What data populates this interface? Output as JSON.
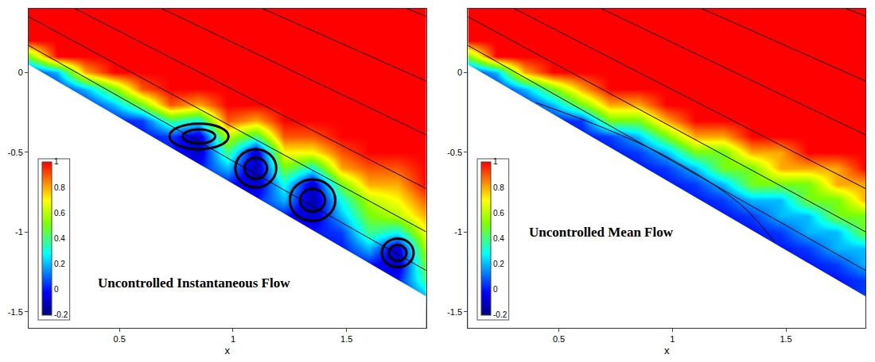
{
  "chart_data": [
    {
      "type": "heatmap",
      "annotation": "Uncontrolled Instantaneous Flow",
      "xlabel": "x",
      "xlim": [
        0.1,
        1.85
      ],
      "xticks": [
        0.5,
        1,
        1.5
      ],
      "ylim": [
        -1.6,
        0.4
      ],
      "yticks": [
        -1.5,
        -1,
        -0.5,
        0
      ],
      "zlim": [
        -0.2,
        1
      ],
      "zticks": [
        -0.2,
        0,
        0.2,
        0.4,
        0.6,
        0.8,
        1
      ],
      "grid": false,
      "x": [
        0.1,
        0.225,
        0.35,
        0.475,
        0.6,
        0.725,
        0.85,
        0.975,
        1.1,
        1.225,
        1.35,
        1.475,
        1.6,
        1.725,
        1.85
      ],
      "y": [
        -1.6,
        -1.5,
        -1.4,
        -1.3,
        -1.2,
        -1.1,
        -1.0,
        -0.9,
        -0.8,
        -0.7,
        -0.6,
        -0.5,
        -0.4,
        -0.3,
        -0.2,
        -0.1,
        0,
        0.1,
        0.2,
        0.3,
        0.4
      ],
      "z": [
        [
          0,
          0,
          0,
          0,
          0,
          0,
          0,
          0,
          0,
          0,
          0,
          0,
          0,
          0,
          0
        ],
        [
          0,
          0,
          0,
          0,
          0,
          0,
          0,
          0,
          0,
          0,
          0,
          0,
          0,
          0,
          0
        ],
        [
          0,
          0,
          0,
          0,
          0,
          0,
          0,
          0,
          0,
          0,
          0,
          0,
          0,
          0,
          0.2
        ],
        [
          0,
          0,
          0,
          0,
          0,
          0,
          0,
          0,
          0,
          0,
          0,
          0,
          0,
          0,
          0.4
        ],
        [
          0,
          0,
          0,
          0,
          0,
          0,
          0,
          0,
          0,
          0,
          0,
          0,
          0,
          -0.1,
          0.5
        ],
        [
          0,
          0,
          0,
          0,
          0,
          0,
          0,
          0,
          0,
          0,
          0,
          0,
          0.2,
          -0.1,
          0.6
        ],
        [
          0,
          0,
          0,
          0,
          0,
          0,
          0,
          0,
          0,
          0,
          0,
          0.05,
          0.4,
          0.3,
          0.7
        ],
        [
          0,
          0,
          0,
          0,
          0,
          0,
          0,
          0,
          0,
          0,
          -0.1,
          0.2,
          0.5,
          0.6,
          0.8
        ],
        [
          0,
          0,
          0,
          0,
          0,
          0,
          0,
          0,
          0,
          0.2,
          -0.15,
          0.3,
          0.6,
          0.7,
          0.9
        ],
        [
          0,
          0,
          0,
          0,
          0,
          0,
          0,
          0,
          -0.1,
          0.3,
          -0.1,
          0.5,
          0.8,
          0.8,
          1
        ],
        [
          0,
          0,
          0,
          0,
          0,
          0,
          0,
          0.2,
          -0.15,
          0.5,
          0.3,
          0.8,
          0.9,
          0.9,
          1
        ],
        [
          0,
          0,
          0,
          0,
          0,
          0,
          -0.1,
          0.4,
          -0.1,
          0.7,
          0.7,
          0.9,
          1,
          1,
          1
        ],
        [
          0,
          0,
          0,
          0,
          0,
          0.05,
          -0.1,
          0.6,
          0.4,
          0.9,
          0.9,
          1,
          1,
          1,
          1
        ],
        [
          0,
          0,
          0,
          0,
          0.05,
          0.4,
          0.3,
          0.9,
          0.8,
          1,
          1,
          1,
          1,
          1,
          1
        ],
        [
          0,
          0,
          0,
          0.2,
          0.5,
          0.9,
          0.8,
          1,
          1,
          1,
          1,
          1,
          1,
          1,
          1
        ],
        [
          0,
          0,
          0.2,
          0.5,
          0.9,
          1,
          1,
          1,
          1,
          1,
          1,
          1,
          1,
          1,
          1
        ],
        [
          0,
          0.2,
          0.8,
          1,
          1,
          1,
          1,
          1,
          1,
          1,
          1,
          1,
          1,
          1,
          1
        ],
        [
          0.5,
          1,
          1,
          1,
          1,
          1,
          1,
          1,
          1,
          1,
          1,
          1,
          1,
          1,
          1
        ],
        [
          1,
          1,
          1,
          1,
          1,
          1,
          1,
          1,
          1,
          1,
          1,
          1,
          1,
          1,
          1
        ],
        [
          1,
          1,
          1,
          1,
          1,
          1,
          1,
          1,
          1,
          1,
          1,
          1,
          1,
          1,
          1
        ],
        [
          1,
          1,
          1,
          1,
          1,
          1,
          1,
          1,
          1,
          1,
          1,
          1,
          1,
          1,
          1
        ]
      ],
      "wall": {
        "x": [
          0.1,
          1.85
        ],
        "y": [
          0.05,
          -1.4025
        ]
      },
      "streamlines": [
        {
          "x": [
            0.1,
            0.5,
            1.0,
            1.5,
            1.85
          ],
          "y": [
            0.17,
            -0.152,
            -0.555,
            -0.958,
            -1.24
          ]
        },
        {
          "x": [
            0.1,
            0.5,
            1.0,
            1.5,
            1.85
          ],
          "y": [
            0.35,
            0.042,
            -0.343,
            -0.728,
            -0.998
          ]
        },
        {
          "x": [
            0.1,
            0.5,
            1.0,
            1.5,
            1.85
          ],
          "y": [
            0.55,
            0.258,
            -0.107,
            -0.472,
            -0.727
          ]
        },
        {
          "x": [
            0.1,
            0.5,
            1.0,
            1.5,
            1.85
          ],
          "y": [
            0.8,
            0.528,
            0.188,
            -0.152,
            -0.39
          ]
        },
        {
          "x": [
            0.1,
            0.5,
            1.0,
            1.5,
            1.85
          ],
          "y": [
            1.05,
            0.798,
            0.483,
            0.168,
            -0.053
          ]
        },
        {
          "x": [
            0.1,
            0.5,
            1.0,
            1.5,
            1.85
          ],
          "y": [
            1.35,
            1.122,
            0.837,
            0.552,
            0.353
          ]
        }
      ],
      "vortices": [
        {
          "x": 0.85,
          "y": -0.4,
          "x_radius": 0.13,
          "y_radius": 0.08
        },
        {
          "x": 1.1,
          "y": -0.6,
          "x_radius": 0.09,
          "y_radius": 0.12
        },
        {
          "x": 1.35,
          "y": -0.8,
          "x_radius": 0.1,
          "y_radius": 0.13
        },
        {
          "x": 1.725,
          "y": -1.13,
          "x_radius": 0.07,
          "y_radius": 0.09
        }
      ]
    },
    {
      "type": "heatmap",
      "annotation": "Uncontrolled Mean Flow",
      "xlabel": "x",
      "xlim": [
        0.1,
        1.85
      ],
      "xticks": [
        0.5,
        1,
        1.5
      ],
      "ylim": [
        -1.6,
        0.4
      ],
      "yticks": [
        -1.5,
        -1,
        -0.5,
        0
      ],
      "zlim": [
        -0.2,
        1
      ],
      "zticks": [
        -0.2,
        0,
        0.2,
        0.4,
        0.6,
        0.8,
        1
      ],
      "grid": false,
      "x": [
        0.1,
        0.225,
        0.35,
        0.475,
        0.6,
        0.725,
        0.85,
        0.975,
        1.1,
        1.225,
        1.35,
        1.475,
        1.6,
        1.725,
        1.85
      ],
      "y": [
        -1.6,
        -1.5,
        -1.4,
        -1.3,
        -1.2,
        -1.1,
        -1.0,
        -0.9,
        -0.8,
        -0.7,
        -0.6,
        -0.5,
        -0.4,
        -0.3,
        -0.2,
        -0.1,
        0,
        0.1,
        0.2,
        0.3,
        0.4
      ],
      "z": [
        [
          0,
          0,
          0,
          0,
          0,
          0,
          0,
          0,
          0,
          0,
          0,
          0,
          0,
          0,
          0
        ],
        [
          0,
          0,
          0,
          0,
          0,
          0,
          0,
          0,
          0,
          0,
          0,
          0,
          0,
          0,
          0
        ],
        [
          0,
          0,
          0,
          0,
          0,
          0,
          0,
          0,
          0,
          0,
          0,
          0,
          0,
          0,
          0.05
        ],
        [
          0,
          0,
          0,
          0,
          0,
          0,
          0,
          0,
          0,
          0,
          0,
          0,
          0,
          0,
          0.05
        ],
        [
          0,
          0,
          0,
          0,
          0,
          0,
          0,
          0,
          0,
          0,
          0,
          0,
          0,
          0.05,
          0.2
        ],
        [
          0,
          0,
          0,
          0,
          0,
          0,
          0,
          0,
          0,
          0,
          0,
          0,
          0.05,
          0.2,
          0.2
        ],
        [
          0,
          0,
          0,
          0,
          0,
          0,
          0,
          0,
          0,
          0,
          0,
          0.05,
          0.2,
          0.2,
          0.5
        ],
        [
          0,
          0,
          0,
          0,
          0,
          0,
          0,
          0,
          0,
          0,
          0.05,
          0.2,
          0.2,
          0.5,
          0.5
        ],
        [
          0,
          0,
          0,
          0,
          0,
          0,
          0,
          0,
          0,
          0.05,
          0.2,
          0.2,
          0.5,
          0.5,
          0.8
        ],
        [
          0,
          0,
          0,
          0,
          0,
          0,
          0,
          0,
          0.05,
          0.2,
          0.5,
          0.5,
          0.5,
          0.8,
          0.8
        ],
        [
          0,
          0,
          0,
          0,
          0,
          0,
          0,
          0.05,
          0.2,
          0.5,
          0.5,
          0.8,
          0.8,
          0.8,
          1
        ],
        [
          0,
          0,
          0,
          0,
          0,
          0,
          0.05,
          0.2,
          0.5,
          0.5,
          0.8,
          0.8,
          1,
          1,
          1
        ],
        [
          0,
          0,
          0,
          0,
          0,
          0.05,
          0.2,
          0.5,
          0.8,
          0.8,
          1,
          1,
          1,
          1,
          1
        ],
        [
          0,
          0,
          0,
          0,
          0.05,
          0.5,
          0.5,
          0.8,
          1,
          1,
          1,
          1,
          1,
          1,
          1
        ],
        [
          0,
          0,
          0,
          0.2,
          0.5,
          0.8,
          0.8,
          1,
          1,
          1,
          1,
          1,
          1,
          1,
          1
        ],
        [
          0,
          0,
          0.2,
          0.5,
          0.8,
          1,
          1,
          1,
          1,
          1,
          1,
          1,
          1,
          1,
          1
        ],
        [
          0,
          0.2,
          0.8,
          1,
          1,
          1,
          1,
          1,
          1,
          1,
          1,
          1,
          1,
          1,
          1
        ],
        [
          0.5,
          1,
          1,
          1,
          1,
          1,
          1,
          1,
          1,
          1,
          1,
          1,
          1,
          1,
          1
        ],
        [
          1,
          1,
          1,
          1,
          1,
          1,
          1,
          1,
          1,
          1,
          1,
          1,
          1,
          1,
          1
        ],
        [
          1,
          1,
          1,
          1,
          1,
          1,
          1,
          1,
          1,
          1,
          1,
          1,
          1,
          1,
          1
        ],
        [
          1,
          1,
          1,
          1,
          1,
          1,
          1,
          1,
          1,
          1,
          1,
          1,
          1,
          1,
          1
        ]
      ],
      "wall": {
        "x": [
          0.1,
          1.85
        ],
        "y": [
          0.05,
          -1.4025
        ]
      },
      "streamlines": [
        {
          "x": [
            0.4,
            0.7,
            1.0,
            1.3,
            1.45
          ],
          "y": [
            -0.189,
            -0.348,
            -0.547,
            -0.826,
            -1.06
          ]
        },
        {
          "x": [
            0.1,
            0.5,
            1.0,
            1.5,
            1.85
          ],
          "y": [
            0.17,
            -0.152,
            -0.555,
            -0.958,
            -1.24
          ]
        },
        {
          "x": [
            0.1,
            0.5,
            1.0,
            1.5,
            1.85
          ],
          "y": [
            0.35,
            0.042,
            -0.343,
            -0.728,
            -0.998
          ]
        },
        {
          "x": [
            0.1,
            0.5,
            1.0,
            1.5,
            1.85
          ],
          "y": [
            0.55,
            0.258,
            -0.107,
            -0.472,
            -0.727
          ]
        },
        {
          "x": [
            0.1,
            0.5,
            1.0,
            1.5,
            1.85
          ],
          "y": [
            0.8,
            0.528,
            0.188,
            -0.152,
            -0.39
          ]
        },
        {
          "x": [
            0.1,
            0.5,
            1.0,
            1.5,
            1.85
          ],
          "y": [
            1.05,
            0.798,
            0.483,
            0.168,
            -0.053
          ]
        },
        {
          "x": [
            0.1,
            0.5,
            1.0,
            1.5,
            1.85
          ],
          "y": [
            1.35,
            1.122,
            0.837,
            0.552,
            0.353
          ]
        }
      ],
      "vortices": []
    }
  ]
}
